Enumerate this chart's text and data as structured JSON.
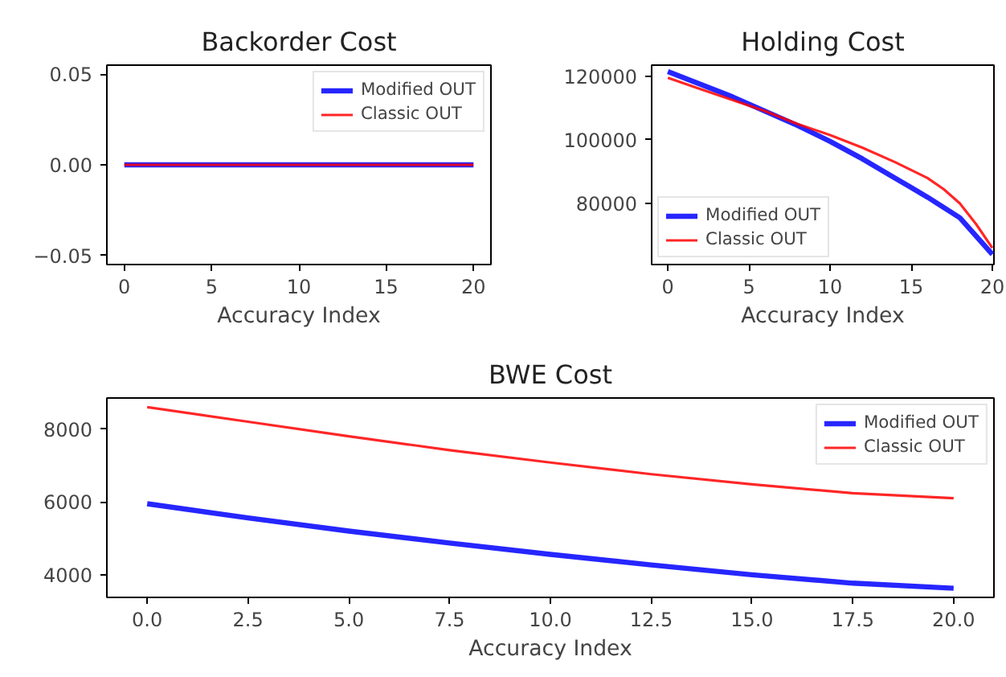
{
  "chart_data": [
    {
      "type": "line",
      "title": "Backorder Cost",
      "xlabel": "Accuracy Index",
      "legend": "top right",
      "grid": false,
      "xlim": [
        -1,
        21
      ],
      "xticks": [
        0,
        5,
        10,
        15,
        20
      ],
      "ylim": [
        -0.055,
        0.055
      ],
      "yticks": [
        {
          "value": -0.05,
          "label": "−0.05"
        },
        {
          "value": 0,
          "label": "0.00"
        },
        {
          "value": 0.05,
          "label": "0.05"
        }
      ],
      "series": [
        {
          "name": "Modified OUT",
          "color": "#0000ff",
          "x": [
            0,
            20
          ],
          "values": [
            0,
            0
          ]
        },
        {
          "name": "Classic OUT",
          "color": "#ff0000",
          "x": [
            0,
            20
          ],
          "values": [
            0,
            0
          ]
        }
      ]
    },
    {
      "type": "line",
      "title": "Holding Cost",
      "xlabel": "Accuracy Index",
      "legend": "bottom left",
      "grid": false,
      "xlim": [
        -1,
        20.1
      ],
      "xticks": [
        0,
        5,
        10,
        15,
        20
      ],
      "ylim": [
        60800,
        123500
      ],
      "yticks": [
        80000,
        100000,
        120000
      ],
      "series": [
        {
          "name": "Modified OUT",
          "color": "#0000ff",
          "x": [
            0,
            2,
            4,
            6,
            8,
            10,
            12,
            14,
            15,
            16,
            18,
            20
          ],
          "values": [
            121500,
            117500,
            113500,
            109000,
            104500,
            99500,
            94000,
            88000,
            85000,
            82000,
            75500,
            64000
          ]
        },
        {
          "name": "Classic OUT",
          "color": "#ff0000",
          "x": [
            0,
            2,
            4,
            6,
            8,
            10,
            12,
            14,
            16,
            17,
            18,
            19,
            20
          ],
          "values": [
            119500,
            116000,
            112500,
            109000,
            105000,
            101500,
            97500,
            93000,
            88000,
            84500,
            80000,
            73500,
            66000
          ]
        }
      ]
    },
    {
      "type": "line",
      "title": "BWE Cost",
      "xlabel": "Accuracy Index",
      "legend": "top right",
      "grid": false,
      "xlim": [
        -1,
        21
      ],
      "xticks": [
        {
          "value": 0,
          "label": "0.0"
        },
        {
          "value": 2.5,
          "label": "2.5"
        },
        {
          "value": 5,
          "label": "5.0"
        },
        {
          "value": 7.5,
          "label": "7.5"
        },
        {
          "value": 10,
          "label": "10.0"
        },
        {
          "value": 12.5,
          "label": "12.5"
        },
        {
          "value": 15,
          "label": "15.0"
        },
        {
          "value": 17.5,
          "label": "17.5"
        },
        {
          "value": 20,
          "label": "20.0"
        }
      ],
      "ylim": [
        3380,
        8850
      ],
      "yticks": [
        4000,
        6000,
        8000
      ],
      "series": [
        {
          "name": "Modified OUT",
          "color": "#0000ff",
          "x": [
            0,
            2.5,
            5,
            7.5,
            10,
            12.5,
            15,
            17.5,
            20
          ],
          "values": [
            5950,
            5560,
            5200,
            4870,
            4560,
            4270,
            4000,
            3770,
            3630
          ]
        },
        {
          "name": "Classic OUT",
          "color": "#ff0000",
          "x": [
            0,
            2.5,
            5,
            7.5,
            10,
            12.5,
            15,
            17.5,
            20
          ],
          "values": [
            8600,
            8200,
            7800,
            7420,
            7080,
            6760,
            6480,
            6240,
            6100
          ]
        }
      ]
    }
  ]
}
